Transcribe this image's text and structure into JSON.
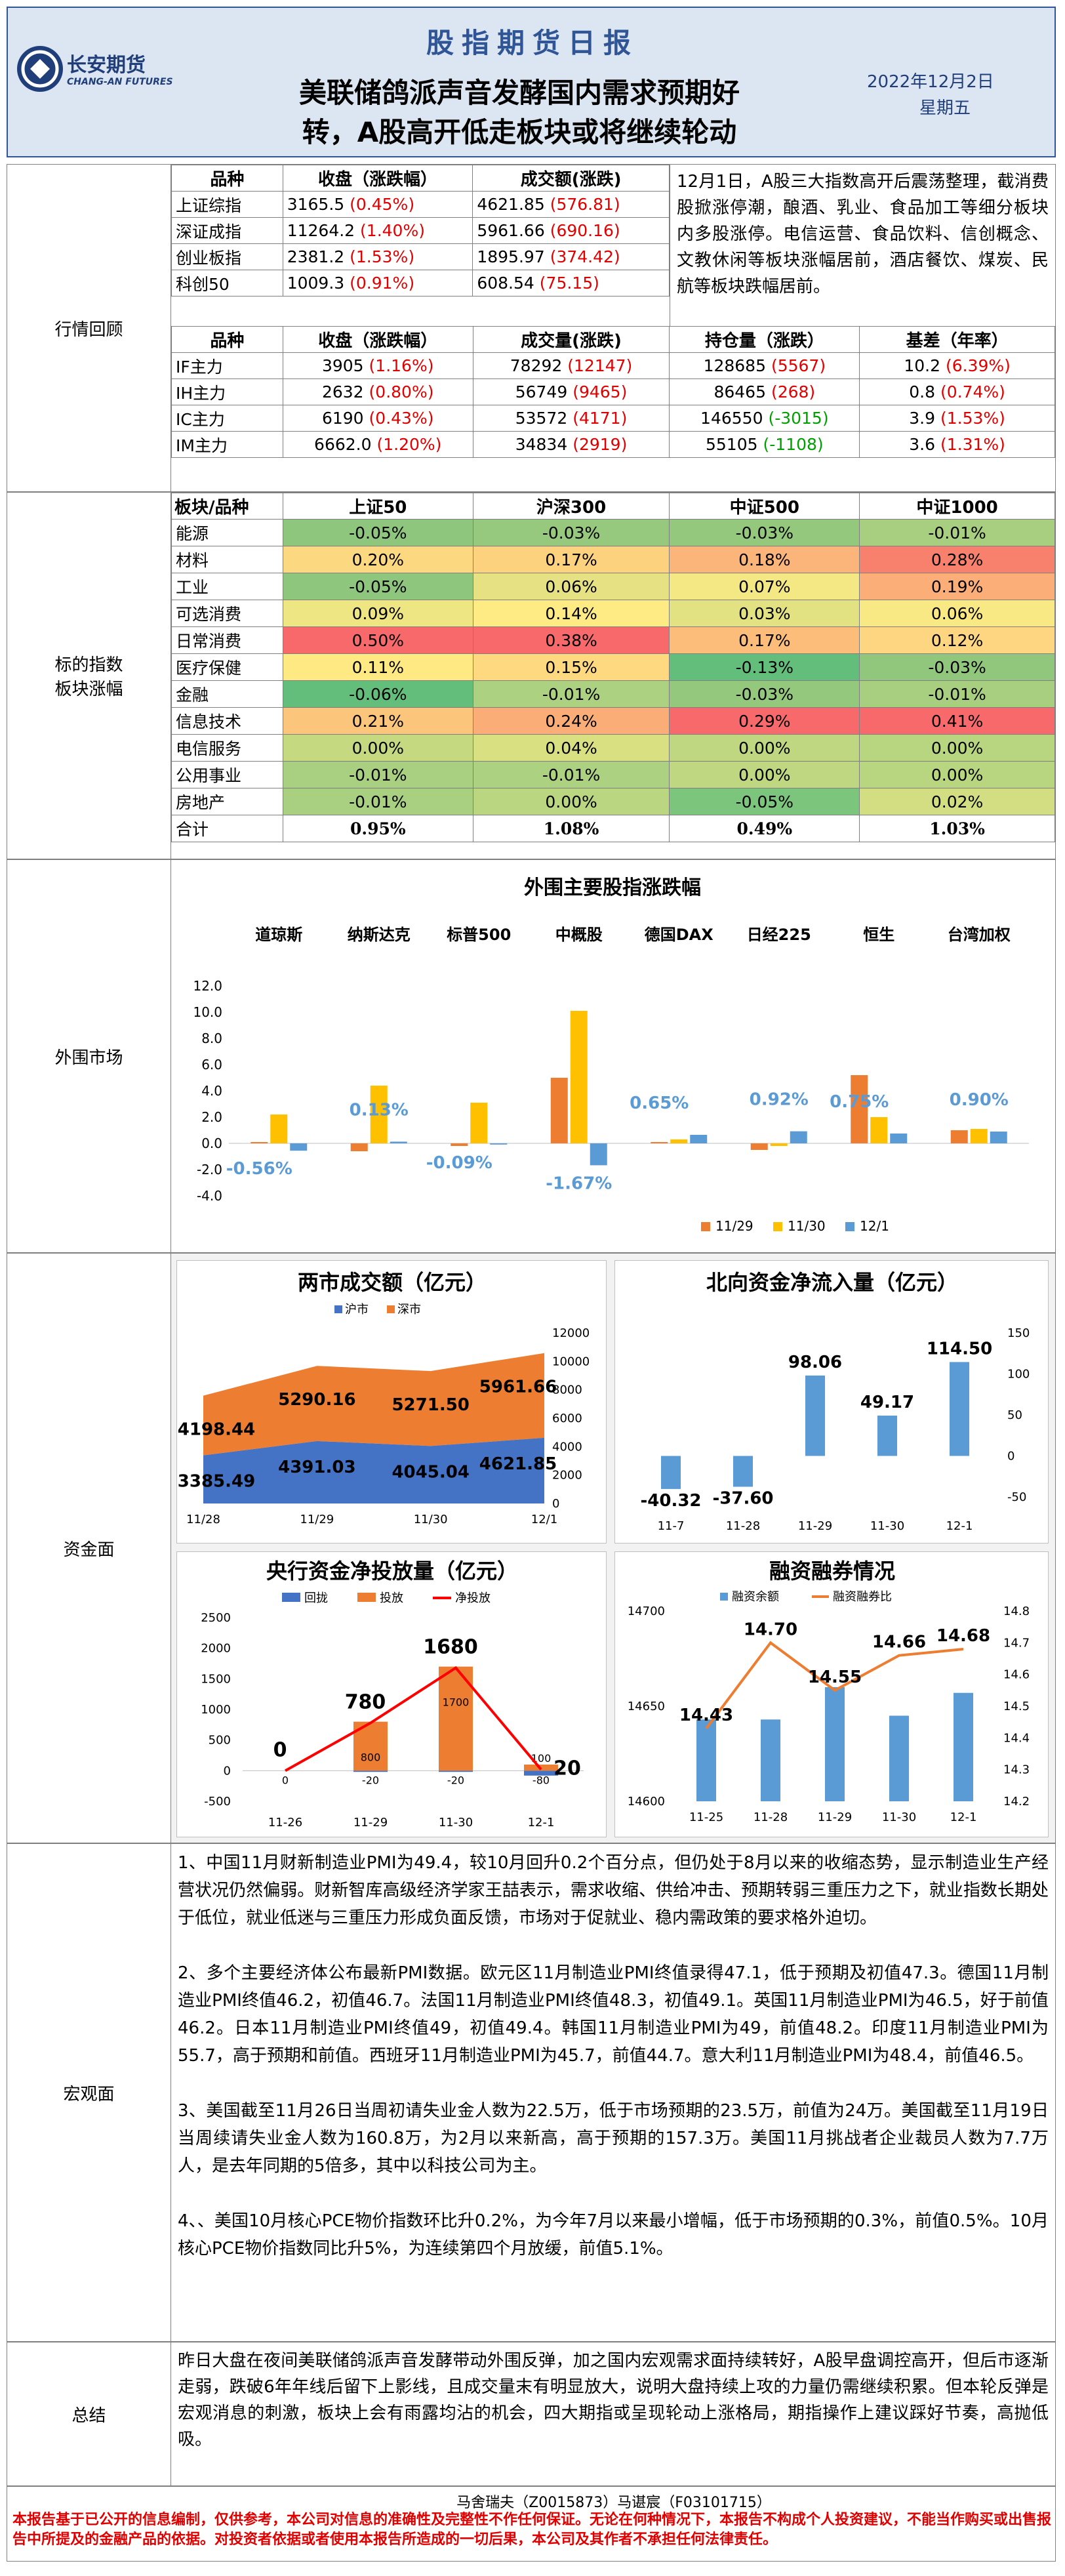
{
  "header": {
    "logo_cn": "长安期货",
    "logo_en": "CHANG-AN FUTURES",
    "report_title": "股指期货日报",
    "headline_1": "美联储鸽派声音发酵国内需求预期好",
    "headline_2": "转，A股高开低走板块或将继续轮动",
    "date": "2022年12月2日",
    "weekday": "星期五"
  },
  "sections": {
    "market": "行情回顾",
    "sector": "标的指数板块涨幅",
    "external": "外围市场",
    "funds": "资金面",
    "macro": "宏观面",
    "summary": "总结"
  },
  "index_table": {
    "headers": [
      "品种",
      "收盘（涨跌幅）",
      "成交额(涨跌)"
    ],
    "rows": [
      {
        "name": "上证综指",
        "close": "3165.5",
        "pct": "(0.45%)",
        "amt": "4621.85",
        "chg": "(576.81)"
      },
      {
        "name": "深证成指",
        "close": "11264.2",
        "pct": "(1.40%)",
        "amt": "5961.66",
        "chg": "(690.16)"
      },
      {
        "name": "创业板指",
        "close": "2381.2",
        "pct": "(1.53%)",
        "amt": "1895.97",
        "chg": "(374.42)"
      },
      {
        "name": "科创50",
        "close": "1009.3",
        "pct": "(0.91%)",
        "amt": "608.54",
        "chg": "(75.15)"
      }
    ]
  },
  "market_note": "12月1日，A股三大指数高开后震荡整理，截消费股掀涨停潮，酿酒、乳业、食品加工等细分板块内多股涨停。电信运营、食品饮料、信创概念、文教休闲等板块涨幅居前，酒店餐饮、煤炭、民航等板块跌幅居前。",
  "futures_table": {
    "headers": [
      "品种",
      "收盘（涨跌幅）",
      "成交量(涨跌)",
      "持仓量（涨跌）",
      "基差（年率）"
    ],
    "rows": [
      {
        "name": "IF主力",
        "close": "3905",
        "pct": "(1.16%)",
        "vol": "78292",
        "vchg": "(12147)",
        "oi": "128685",
        "oichg": "(5567)",
        "oi_color": "red",
        "basis": "10.2",
        "rate": "(6.39%)"
      },
      {
        "name": "IH主力",
        "close": "2632",
        "pct": "(0.80%)",
        "vol": "56749",
        "vchg": "(9465)",
        "oi": "86465",
        "oichg": "(268)",
        "oi_color": "red",
        "basis": "0.8",
        "rate": "(0.74%)"
      },
      {
        "name": "IC主力",
        "close": "6190",
        "pct": "(0.43%)",
        "vol": "53572",
        "vchg": "(4171)",
        "oi": "146550",
        "oichg": "(-3015)",
        "oi_color": "grn",
        "basis": "3.9",
        "rate": "(1.53%)"
      },
      {
        "name": "IM主力",
        "close": "6662.0",
        "pct": "(1.20%)",
        "vol": "34834",
        "vchg": "(2919)",
        "oi": "55105",
        "oichg": "(-1108)",
        "oi_color": "grn",
        "basis": "3.6",
        "rate": "(1.31%)"
      }
    ]
  },
  "sector_table": {
    "headers": [
      "板块/品种",
      "上证50",
      "沪深300",
      "中证500",
      "中证1000"
    ],
    "rows": [
      {
        "name": "能源",
        "v": [
          "-0.05%",
          "-0.03%",
          "-0.03%",
          "-0.01%"
        ],
        "bg": [
          "#8ec67e",
          "#96c97d",
          "#93c87d",
          "#a8cf80"
        ]
      },
      {
        "name": "材料",
        "v": [
          "0.20%",
          "0.17%",
          "0.18%",
          "0.28%"
        ],
        "bg": [
          "#fcd880",
          "#fcd27f",
          "#fbb57a",
          "#f8816d"
        ]
      },
      {
        "name": "工业",
        "v": [
          "-0.05%",
          "0.06%",
          "0.07%",
          "0.19%"
        ],
        "bg": [
          "#8ec67e",
          "#e6e283",
          "#f4e884",
          "#fbae78"
        ]
      },
      {
        "name": "可选消费",
        "v": [
          "0.09%",
          "0.14%",
          "0.03%",
          "0.06%"
        ],
        "bg": [
          "#eee683",
          "#ffeb84",
          "#e3e283",
          "#f8e985"
        ]
      },
      {
        "name": "日常消费",
        "v": [
          "0.50%",
          "0.38%",
          "0.17%",
          "0.12%"
        ],
        "bg": [
          "#f8696b",
          "#f8696b",
          "#fcbd7b",
          "#fed580"
        ]
      },
      {
        "name": "医疗保健",
        "v": [
          "0.11%",
          "0.15%",
          "-0.13%",
          "-0.03%"
        ],
        "bg": [
          "#fee983",
          "#fed980",
          "#63be7b",
          "#90c77d"
        ]
      },
      {
        "name": "金融",
        "v": [
          "-0.06%",
          "-0.01%",
          "-0.03%",
          "-0.01%"
        ],
        "bg": [
          "#63be7b",
          "#acd181",
          "#93c87d",
          "#a8cf80"
        ]
      },
      {
        "name": "信息技术",
        "v": [
          "0.21%",
          "0.24%",
          "0.29%",
          "0.41%"
        ],
        "bg": [
          "#fcc57c",
          "#fbad78",
          "#f8696b",
          "#f8696b"
        ]
      },
      {
        "name": "电信服务",
        "v": [
          "0.00%",
          "0.04%",
          "0.00%",
          "0.00%"
        ],
        "bg": [
          "#c5d980",
          "#d9e082",
          "#bfd781",
          "#b8d57f"
        ]
      },
      {
        "name": "公用事业",
        "v": [
          "-0.01%",
          "-0.01%",
          "0.00%",
          "0.00%"
        ],
        "bg": [
          "#a9d080",
          "#acd181",
          "#bfd781",
          "#b8d57f"
        ]
      },
      {
        "name": "房地产",
        "v": [
          "-0.01%",
          "0.00%",
          "-0.05%",
          "0.02%"
        ],
        "bg": [
          "#a9d080",
          "#bbd680",
          "#7bc57c",
          "#d3de82"
        ]
      }
    ],
    "total": {
      "name": "合计",
      "v": [
        "0.95%",
        "1.08%",
        "0.49%",
        "1.03%"
      ]
    }
  },
  "macro_paragraphs": [
    "1、中国11月财新制造业PMI为49.4，较10月回升0.2个百分点，但仍处于8月以来的收缩态势，显示制造业生产经营状况仍然偏弱。财新智库高级经济学家王喆表示，需求收缩、供给冲击、预期转弱三重压力之下，就业指数长期处于低位，就业低迷与三重压力形成负面反馈，市场对于促就业、稳内需政策的要求格外迫切。",
    "2、多个主要经济体公布最新PMI数据。欧元区11月制造业PMI终值录得47.1，低于预期及初值47.3。德国11月制造业PMI终值46.2，初值46.7。法国11月制造业PMI终值48.3，初值49.1。英国11月制造业PMI为46.5，好于前值46.2。日本11月制造业PMI终值49，初值49.4。韩国11月制造业PMI为49，前值48.2。印度11月制造业PMI为55.7，高于预期和前值。西班牙11月制造业PMI为45.7，前值44.7。意大利11月制造业PMI为48.4，前值46.5。",
    "3、美国截至11月26日当周初请失业金人数为22.5万，低于市场预期的23.5万，前值为24万。美国截至11月19日当周续请失业金人数为160.8万，为2月以来新高，高于预期的157.3万。美国11月挑战者企业裁员人数为7.7万人，是去年同期的5倍多，其中以科技公司为主。",
    "4、、美国10月核心PCE物价指数环比升0.2%，为今年7月以来最小增幅，低于市场预期的0.3%，前值0.5%。10月核心PCE物价指数同比升5%，为连续第四个月放缓，前值5.1%。"
  ],
  "summary_text": "昨日大盘在夜间美联储鸽派声音发酵带动外围反弹，加之国内宏观需求面持续转好，A股早盘调控高开，但后市逐渐走弱，跌破6年年线后留下上影线，且成交量末有明显放大，说明大盘持续上攻的力量仍需继续积累。但本轮反弹是宏观消息的刺激，板块上会有雨露均沾的机会，四大期指或呈现轮动上涨格局，期指操作上建议踩好节奏，高抛低吸。",
  "footer": {
    "authors": "马舍瑞夫（Z0015873）马谌宸（F03101715）",
    "disclaimer": "本报告基于已公开的信息编制，仅供参考，本公司对信息的准确性及完整性不作任何保证。无论在何种情况下，本报告不构成个人投资建议，不能当作购买或出售报告中所提及的金融产品的依据。对投资者依据或者使用本报告所造成的一切后果，本公司及其作者不承担任何法律责任。"
  },
  "colors": {
    "s1": "#ed7d31",
    "s2": "#ffc000",
    "s3": "#5b9bd5",
    "hu": "#4472c4",
    "shen": "#ed7d31",
    "bar_blue": "#5b9bd5",
    "line_red": "#ff0000",
    "line_orange": "#ed7d31"
  },
  "chart_data": [
    {
      "type": "bar",
      "title": "外围主要股指涨跌幅",
      "categories": [
        "道琼斯",
        "纳斯达克",
        "标普500",
        "中概股",
        "德国DAX",
        "日经225",
        "恒生",
        "台湾加权"
      ],
      "series": [
        {
          "name": "11/29",
          "values": [
            0.1,
            -0.6,
            -0.2,
            5.0,
            0.1,
            -0.5,
            5.2,
            1.0
          ]
        },
        {
          "name": "11/30",
          "values": [
            2.2,
            4.4,
            3.1,
            10.1,
            0.3,
            -0.2,
            2.0,
            1.1
          ]
        },
        {
          "name": "12/1",
          "values": [
            -0.56,
            0.13,
            -0.09,
            -1.67,
            0.65,
            0.92,
            0.75,
            0.9
          ]
        }
      ],
      "labels": [
        "-0.56%",
        "0.13%",
        "-0.09%",
        "-1.67%",
        "0.65%",
        "0.92%",
        "0.75%",
        "0.90%"
      ],
      "ylim": [
        -4,
        12
      ],
      "yticks": [
        "12.0",
        "10.0",
        "8.0",
        "6.0",
        "4.0",
        "2.0",
        "0.0",
        "-2.0",
        "-4.0"
      ]
    },
    {
      "type": "area",
      "title": "两市成交额（亿元）",
      "x": [
        "11/28",
        "11/29",
        "11/30",
        "12/1"
      ],
      "series": [
        {
          "name": "沪市",
          "values": [
            3385.49,
            4391.03,
            4045.04,
            4621.85
          ]
        },
        {
          "name": "深市",
          "values": [
            4198.44,
            5290.16,
            5271.5,
            5961.66
          ]
        }
      ],
      "ylim": [
        0,
        12000
      ],
      "yticks": [
        "12000",
        "10000",
        "8000",
        "6000",
        "4000",
        "2000",
        "0"
      ]
    },
    {
      "type": "bar",
      "title": "北向资金净流入量（亿元）",
      "x": [
        "11-7",
        "11-28",
        "11-29",
        "11-30",
        "12-1"
      ],
      "values": [
        -40.32,
        -37.6,
        98.06,
        49.17,
        114.5
      ],
      "labels": [
        "-40.32",
        "-37.60",
        "98.06",
        "49.17",
        "114.50"
      ],
      "ylim": [
        -50,
        150
      ],
      "yticks": [
        "150",
        "100",
        "50",
        "0",
        "-50"
      ]
    },
    {
      "type": "bar",
      "title": "央行资金净投放量（亿元）",
      "x": [
        "11-26",
        "11-29",
        "11-30",
        "12-1"
      ],
      "series": [
        {
          "name": "回拢",
          "values": [
            0,
            -20,
            -20,
            -80
          ]
        },
        {
          "name": "投放",
          "values": [
            0,
            800,
            1700,
            100
          ]
        },
        {
          "name": "净投放",
          "values": [
            0,
            780,
            1680,
            20
          ]
        }
      ],
      "labels_back": [
        "0",
        "-20",
        "-20",
        "-80"
      ],
      "labels_put": [
        "",
        "800",
        "1700",
        "100"
      ],
      "labels_net": [
        "0",
        "780",
        "1680",
        "20"
      ],
      "ylim": [
        -500,
        2500
      ],
      "yticks": [
        "2500",
        "2000",
        "1500",
        "1000",
        "500",
        "0",
        "-500"
      ]
    },
    {
      "type": "bar",
      "title": "融资融券情况",
      "x": [
        "11-25",
        "11-28",
        "11-29",
        "11-30",
        "12-1"
      ],
      "series": [
        {
          "name": "融资余额",
          "values": [
            14643,
            14643,
            14660,
            14645,
            14657
          ]
        },
        {
          "name": "融资融券比",
          "values": [
            14.43,
            14.7,
            14.55,
            14.66,
            14.68
          ]
        }
      ],
      "labels": [
        "14.43",
        "14.70",
        "14.55",
        "14.66",
        "14.68"
      ],
      "ylim": [
        14600,
        14700
      ],
      "y2lim": [
        14.2,
        14.8
      ],
      "yticks": [
        "14700",
        "14650",
        "14600"
      ],
      "y2ticks": [
        "14.8",
        "14.7",
        "14.6",
        "14.5",
        "14.4",
        "14.3",
        "14.2"
      ]
    }
  ]
}
